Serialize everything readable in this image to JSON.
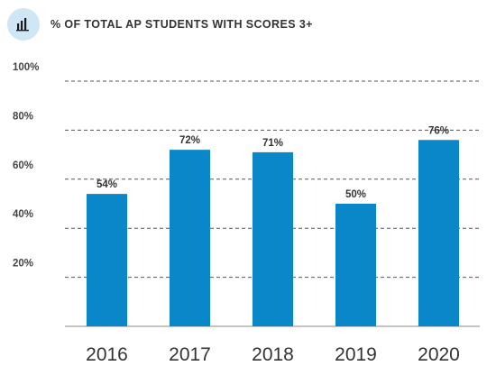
{
  "header": {
    "title": "% OF TOTAL AP STUDENTS WITH SCORES 3+",
    "icon": "bar-chart-icon",
    "icon_bg": "#cfe6f4",
    "icon_color": "#1a1a1a"
  },
  "chart_data": {
    "type": "bar",
    "title": "% OF TOTAL AP STUDENTS WITH SCORES 3+",
    "categories": [
      "2016",
      "2017",
      "2018",
      "2019",
      "2020"
    ],
    "values": [
      54,
      72,
      71,
      50,
      76
    ],
    "data_labels": [
      "54%",
      "72%",
      "71%",
      "50%",
      "76%"
    ],
    "ylim": [
      0,
      100
    ],
    "yticks": [
      20,
      40,
      60,
      80,
      100
    ],
    "ytick_labels": [
      "20%",
      "40%",
      "60%",
      "80%",
      "100%"
    ],
    "xlabel": "",
    "ylabel": "",
    "grid": true,
    "bar_color": "#0a87c8"
  }
}
